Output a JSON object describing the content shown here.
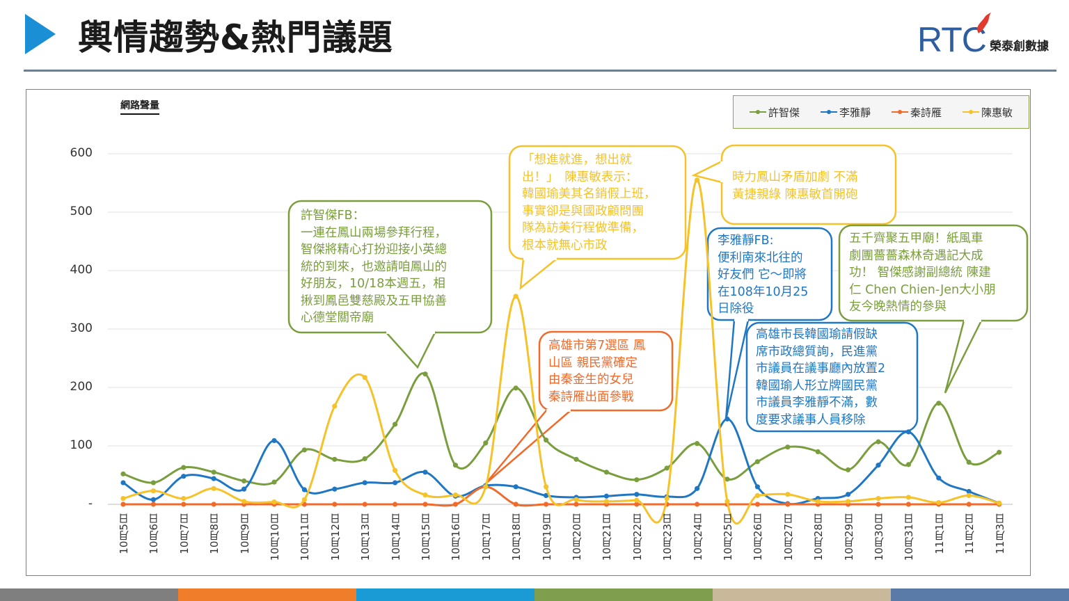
{
  "header": {
    "title": "輿情趨勢&熱門議題",
    "logo_text": "RTC",
    "logo_subtitle": "榮泰創數據"
  },
  "colors": {
    "accent": "#1a8fd6",
    "rule": "#6f7f92",
    "bottom_bar": [
      "#7f7f7f",
      "#f07d2a",
      "#1a9bd6",
      "#7f9f4f",
      "#c9b99a",
      "#5a7aa8"
    ]
  },
  "chart_data": {
    "type": "line",
    "ylabel": "網路聲量",
    "ylim": [
      0,
      600
    ],
    "yticks": [
      "600",
      "500",
      "400",
      "300",
      "200",
      "100",
      "-"
    ],
    "categories": [
      "10月5日",
      "10月6日",
      "10月7日",
      "10月8日",
      "10月9日",
      "10月10日",
      "10月11日",
      "10月12日",
      "10月13日",
      "10月14日",
      "10月15日",
      "10月16日",
      "10月17日",
      "10月18日",
      "10月19日",
      "10月20日",
      "10月21日",
      "10月22日",
      "10月23日",
      "10月24日",
      "10月25日",
      "10月26日",
      "10月27日",
      "10月28日",
      "10月29日",
      "10月30日",
      "10月31日",
      "11月1日",
      "11月2日",
      "11月3日"
    ],
    "series": [
      {
        "name": "許智傑",
        "color": "#7a9e3d",
        "values": [
          52,
          37,
          63,
          55,
          40,
          38,
          93,
          77,
          78,
          137,
          223,
          67,
          105,
          199,
          110,
          77,
          55,
          42,
          62,
          104,
          43,
          73,
          98,
          90,
          59,
          107,
          68,
          173,
          72,
          89
        ]
      },
      {
        "name": "李雅靜",
        "color": "#1f77c4",
        "values": [
          37,
          8,
          48,
          44,
          26,
          109,
          25,
          26,
          37,
          37,
          55,
          14,
          32,
          30,
          15,
          12,
          14,
          17,
          13,
          27,
          146,
          30,
          1,
          10,
          17,
          67,
          124,
          45,
          22,
          2
        ]
      },
      {
        "name": "秦詩雁",
        "color": "#f06a2a",
        "values": [
          0,
          0,
          0,
          0,
          0,
          0,
          0,
          0,
          0,
          0,
          0,
          0,
          30,
          0,
          0,
          0,
          0,
          0,
          0,
          0,
          0,
          0,
          0,
          0,
          0,
          0,
          0,
          0,
          0,
          0
        ]
      },
      {
        "name": "陳惠敏",
        "color": "#f5c22a",
        "values": [
          10,
          23,
          10,
          27,
          5,
          4,
          8,
          168,
          217,
          58,
          16,
          16,
          30,
          356,
          30,
          8,
          5,
          7,
          10,
          555,
          5,
          15,
          17,
          5,
          5,
          10,
          12,
          3,
          15,
          2
        ]
      }
    ]
  },
  "callouts": [
    {
      "color": "#7a9e3d",
      "text": "許智傑FB：\n一連在鳳山兩場參拜行程，\n智傑將精心打扮迎接小英總\n統的到來，也邀請咱鳳山的\n好朋友，10/18本週五，相\n揪到鳳邑雙慈殿及五甲協善\n心德堂關帝廟"
    },
    {
      "color": "#f5c22a",
      "text": "「想進就進，想出就\n出！」　陳惠敏表示：\n韓國瑜美其名銷假上班，\n事實卻是與國政顧問團\n隊為訪美行程做準備，\n根本就無心市政"
    },
    {
      "color": "#f06a2a",
      "text": "高雄市第7選區 鳳\n山區 親民黨確定\n由秦金生的女兒\n秦詩雁出面參戰"
    },
    {
      "color": "#f5c22a",
      "text": "時力鳳山矛盾加劇 不滿\n黃捷親綠 陳惠敏首開砲"
    },
    {
      "color": "#1f77c4",
      "text": "李雅靜FB:\n便利南來北往的\n好友們 它～即將\n在108年10月25\n日除役"
    },
    {
      "color": "#7a9e3d",
      "text": "五千齊聚五甲廟！紙風車\n劇團薔薔森林奇遇記大成\n功！ 智傑感謝副總統 陳建\n仁 Chen Chien-Jen大小朋\n友今晚熱情的參與"
    },
    {
      "color": "#1f77c4",
      "text": "高雄市長韓國瑜請假缺\n席市政總質詢，民進黨\n市議員在議事廳內放置2\n韓國瑜人形立牌國民黨\n市議員李雅靜不滿，數\n度要求議事人員移除"
    }
  ]
}
